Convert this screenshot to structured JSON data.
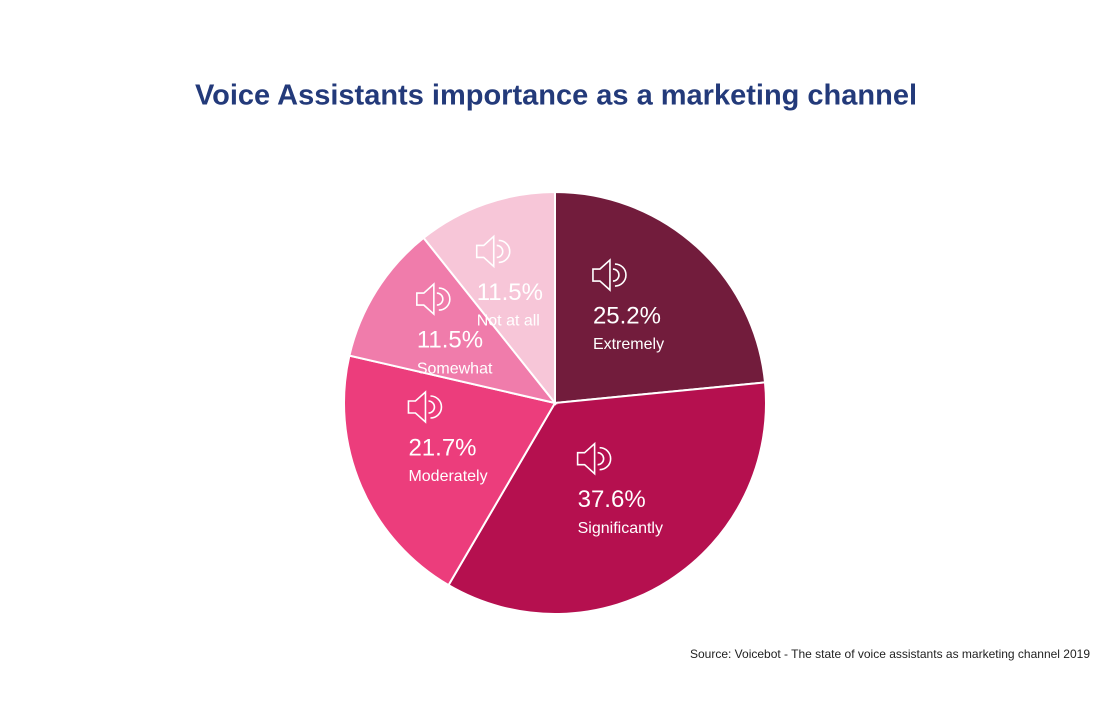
{
  "chart_data": {
    "type": "pie",
    "title": "Voice Assistants importance as a marketing channel",
    "categories": [
      "Extremely",
      "Significantly",
      "Moderately",
      "Somewhat",
      "Not at all"
    ],
    "values": [
      25.2,
      37.6,
      21.7,
      11.5,
      11.5
    ],
    "value_labels": [
      "25.2%",
      "37.6%",
      "21.7%",
      "11.5%",
      "11.5%"
    ],
    "colors": [
      "#721c3c",
      "#b5104f",
      "#ec3d7c",
      "#f07cab",
      "#f7c6d8"
    ],
    "source": "Source: Voicebot - The state of voice assistants as marketing channel 2019"
  }
}
